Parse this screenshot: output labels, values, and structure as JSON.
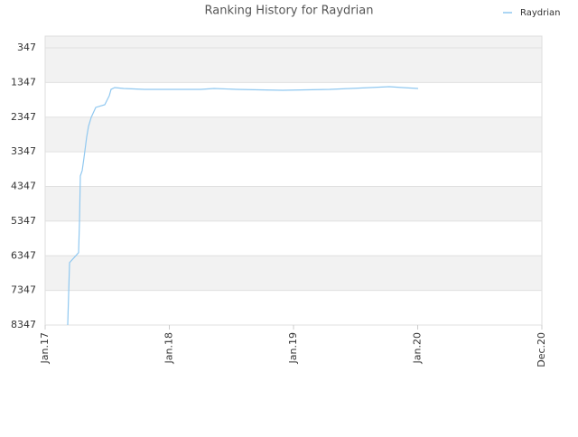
{
  "chart_data": {
    "type": "line",
    "title": "Ranking History for Raydrian",
    "x": [
      2.18,
      2.27,
      2.36,
      3.23,
      3.32,
      3.4,
      3.58,
      3.75,
      4.01,
      4.19,
      4.45,
      4.89,
      5.76,
      6.2,
      6.37,
      6.72,
      7.59,
      9.6,
      15.01,
      16.32,
      18.5,
      22.95,
      27.49,
      29.5,
      31.42,
      33.25,
      34.56,
      36.04
    ],
    "series": [
      {
        "name": "Raydrian",
        "color": "#90c8f0",
        "values": [
          8347,
          7430,
          6544,
          6258,
          5347,
          4045,
          3888,
          3524,
          2925,
          2612,
          2352,
          2066,
          1988,
          1727,
          1545,
          1493,
          1519,
          1545,
          1545,
          1519,
          1545,
          1571,
          1545,
          1519,
          1493,
          1467,
          1493,
          1519
        ]
      }
    ],
    "xlim": [
      0,
      48
    ],
    "xticks": [
      {
        "value": 0,
        "label": "Jan.17"
      },
      {
        "value": 12,
        "label": "Jan.18"
      },
      {
        "value": 24,
        "label": "Jan.19"
      },
      {
        "value": 36,
        "label": "Jan.20"
      },
      {
        "value": 48,
        "label": "Dec.20"
      }
    ],
    "ylim": [
      8347,
      8
    ],
    "yticks": [
      347,
      1347,
      2347,
      3347,
      4347,
      5347,
      6347,
      7347,
      8347
    ],
    "grid": true,
    "legend": "top-right"
  }
}
